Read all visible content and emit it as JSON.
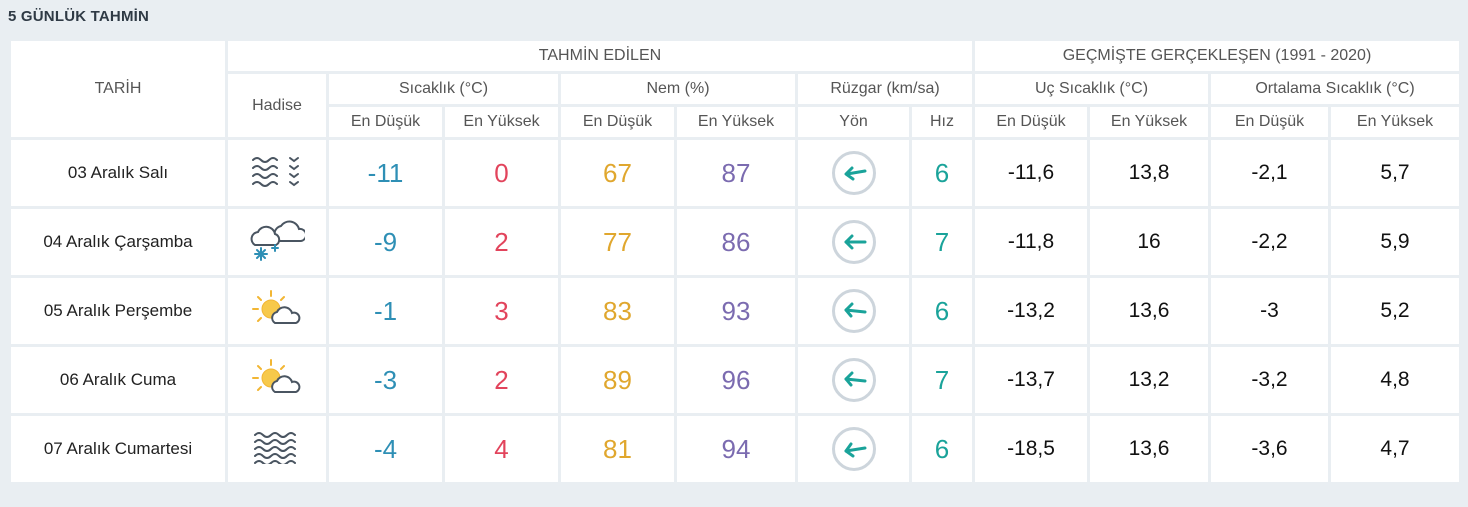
{
  "title": "5 GÜNLÜK TAHMİN",
  "header": {
    "tarih": "TARİH",
    "tahmin_edilen": "TAHMİN EDİLEN",
    "gecmis": "GEÇMİŞTE GERÇEKLEŞEN (1991 - 2020)",
    "hadise": "Hadise",
    "sicaklik": "Sıcaklık (°C)",
    "nem": "Nem (%)",
    "ruzgar": "Rüzgar (km/sa)",
    "uc_sicaklik": "Uç Sıcaklık (°C)",
    "ortalama_sicaklik": "Ortalama Sıcaklık (°C)",
    "en_dusuk": "En Düşük",
    "en_yuksek": "En Yüksek",
    "yon": "Yön",
    "hiz": "Hız"
  },
  "colors": {
    "low": "#2e8fb5",
    "high": "#e2445c",
    "humidity_low": "#e0a72e",
    "humidity_high": "#7b6bb0",
    "wind": "#1aa39a"
  },
  "rows": [
    {
      "date": "03 Aralık Salı",
      "icon": "fog-icon",
      "temp_min": "-11",
      "temp_max": "0",
      "hum_min": "67",
      "hum_max": "87",
      "wind_dir": "east",
      "wind_speed": "6",
      "ext_min": "-11,6",
      "ext_max": "13,8",
      "avg_min": "-2,1",
      "avg_max": "5,7"
    },
    {
      "date": "04 Aralık Çarşamba",
      "icon": "cloud-snow-icon",
      "temp_min": "-9",
      "temp_max": "2",
      "hum_min": "77",
      "hum_max": "86",
      "wind_dir": "east",
      "wind_speed": "7",
      "ext_min": "-11,8",
      "ext_max": "16",
      "avg_min": "-2,2",
      "avg_max": "5,9"
    },
    {
      "date": "05 Aralık Perşembe",
      "icon": "partly-cloudy-icon",
      "temp_min": "-1",
      "temp_max": "3",
      "hum_min": "83",
      "hum_max": "93",
      "wind_dir": "east",
      "wind_speed": "6",
      "ext_min": "-13,2",
      "ext_max": "13,6",
      "avg_min": "-3",
      "avg_max": "5,2"
    },
    {
      "date": "06 Aralık Cuma",
      "icon": "partly-cloudy-icon",
      "temp_min": "-3",
      "temp_max": "2",
      "hum_min": "89",
      "hum_max": "96",
      "wind_dir": "east",
      "wind_speed": "7",
      "ext_min": "-13,7",
      "ext_max": "13,2",
      "avg_min": "-3,2",
      "avg_max": "4,8"
    },
    {
      "date": "07 Aralık Cumartesi",
      "icon": "fog-icon",
      "temp_min": "-4",
      "temp_max": "4",
      "hum_min": "81",
      "hum_max": "94",
      "wind_dir": "east",
      "wind_speed": "6",
      "ext_min": "-18,5",
      "ext_max": "13,6",
      "avg_min": "-3,6",
      "avg_max": "4,7"
    }
  ]
}
